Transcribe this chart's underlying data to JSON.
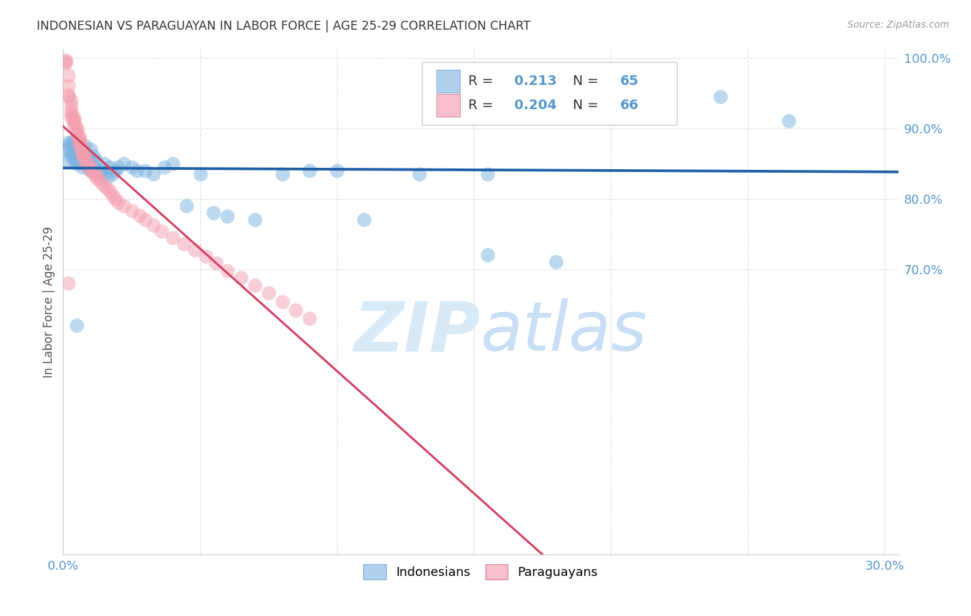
{
  "title": "INDONESIAN VS PARAGUAYAN IN LABOR FORCE | AGE 25-29 CORRELATION CHART",
  "source": "Source: ZipAtlas.com",
  "ylabel": "In Labor Force | Age 25-29",
  "xlim": [
    0.0,
    0.305
  ],
  "ylim": [
    0.295,
    1.012
  ],
  "xticks": [
    0.0,
    0.05,
    0.1,
    0.15,
    0.2,
    0.25,
    0.3
  ],
  "xtick_labels": [
    "0.0%",
    "",
    "",
    "",
    "",
    "",
    "30.0%"
  ],
  "yticks": [
    0.7,
    0.8,
    0.9,
    1.0
  ],
  "ytick_labels": [
    "70.0%",
    "80.0%",
    "90.0%",
    "100.0%"
  ],
  "indonesian_R": 0.213,
  "indonesian_N": 65,
  "paraguayan_R": 0.204,
  "paraguayan_N": 66,
  "blue_scatter": "#7ab3e0",
  "pink_scatter": "#f4a0b0",
  "blue_line": "#1f5fa6",
  "pink_line": "#d44060",
  "legend_blue": "#afd0ee",
  "legend_pink": "#f8c0cc",
  "tick_color": "#5599cc",
  "grid_color": "#dddddd",
  "title_color": "#333333",
  "source_color": "#999999",
  "watermark_color": "#d8eaf8",
  "legend_label1": "Indonesians",
  "legend_label2": "Paraguayans",
  "indo_x": [
    0.001,
    0.001,
    0.002,
    0.002,
    0.003,
    0.003,
    0.003,
    0.004,
    0.004,
    0.004,
    0.005,
    0.005,
    0.005,
    0.005,
    0.006,
    0.006,
    0.006,
    0.007,
    0.007,
    0.007,
    0.008,
    0.008,
    0.008,
    0.009,
    0.009,
    0.01,
    0.01,
    0.01,
    0.011,
    0.011,
    0.012,
    0.012,
    0.013,
    0.014,
    0.015,
    0.015,
    0.016,
    0.017,
    0.018,
    0.019,
    0.02,
    0.022,
    0.025,
    0.027,
    0.03,
    0.033,
    0.037,
    0.04,
    0.045,
    0.05,
    0.055,
    0.06,
    0.07,
    0.08,
    0.09,
    0.1,
    0.11,
    0.13,
    0.155,
    0.18,
    0.21,
    0.24,
    0.265,
    0.155,
    0.005
  ],
  "indo_y": [
    0.855,
    0.87,
    0.875,
    0.88,
    0.86,
    0.865,
    0.88,
    0.855,
    0.87,
    0.88,
    0.85,
    0.855,
    0.865,
    0.875,
    0.855,
    0.87,
    0.88,
    0.845,
    0.86,
    0.87,
    0.85,
    0.86,
    0.875,
    0.845,
    0.86,
    0.84,
    0.855,
    0.87,
    0.845,
    0.86,
    0.84,
    0.855,
    0.835,
    0.84,
    0.835,
    0.85,
    0.83,
    0.845,
    0.835,
    0.84,
    0.845,
    0.85,
    0.845,
    0.84,
    0.84,
    0.835,
    0.845,
    0.85,
    0.79,
    0.835,
    0.78,
    0.775,
    0.77,
    0.835,
    0.84,
    0.84,
    0.77,
    0.835,
    0.72,
    0.71,
    0.945,
    0.945,
    0.91,
    0.835,
    0.62
  ],
  "para_x": [
    0.001,
    0.001,
    0.001,
    0.002,
    0.002,
    0.002,
    0.002,
    0.003,
    0.003,
    0.003,
    0.003,
    0.003,
    0.004,
    0.004,
    0.004,
    0.004,
    0.005,
    0.005,
    0.005,
    0.005,
    0.006,
    0.006,
    0.006,
    0.006,
    0.006,
    0.007,
    0.007,
    0.007,
    0.007,
    0.008,
    0.008,
    0.008,
    0.009,
    0.009,
    0.01,
    0.01,
    0.011,
    0.012,
    0.012,
    0.013,
    0.014,
    0.015,
    0.016,
    0.017,
    0.018,
    0.019,
    0.02,
    0.022,
    0.025,
    0.028,
    0.03,
    0.033,
    0.036,
    0.04,
    0.044,
    0.048,
    0.052,
    0.056,
    0.06,
    0.065,
    0.07,
    0.075,
    0.08,
    0.085,
    0.09,
    0.002
  ],
  "para_y": [
    0.997,
    0.995,
    0.993,
    0.975,
    0.96,
    0.948,
    0.945,
    0.94,
    0.932,
    0.925,
    0.92,
    0.915,
    0.915,
    0.912,
    0.908,
    0.905,
    0.902,
    0.898,
    0.895,
    0.89,
    0.888,
    0.885,
    0.882,
    0.878,
    0.875,
    0.872,
    0.869,
    0.865,
    0.862,
    0.86,
    0.857,
    0.853,
    0.85,
    0.847,
    0.845,
    0.84,
    0.837,
    0.834,
    0.83,
    0.827,
    0.822,
    0.818,
    0.814,
    0.81,
    0.805,
    0.8,
    0.795,
    0.79,
    0.783,
    0.776,
    0.77,
    0.762,
    0.754,
    0.745,
    0.736,
    0.727,
    0.718,
    0.708,
    0.698,
    0.688,
    0.677,
    0.666,
    0.654,
    0.642,
    0.63,
    0.68
  ]
}
